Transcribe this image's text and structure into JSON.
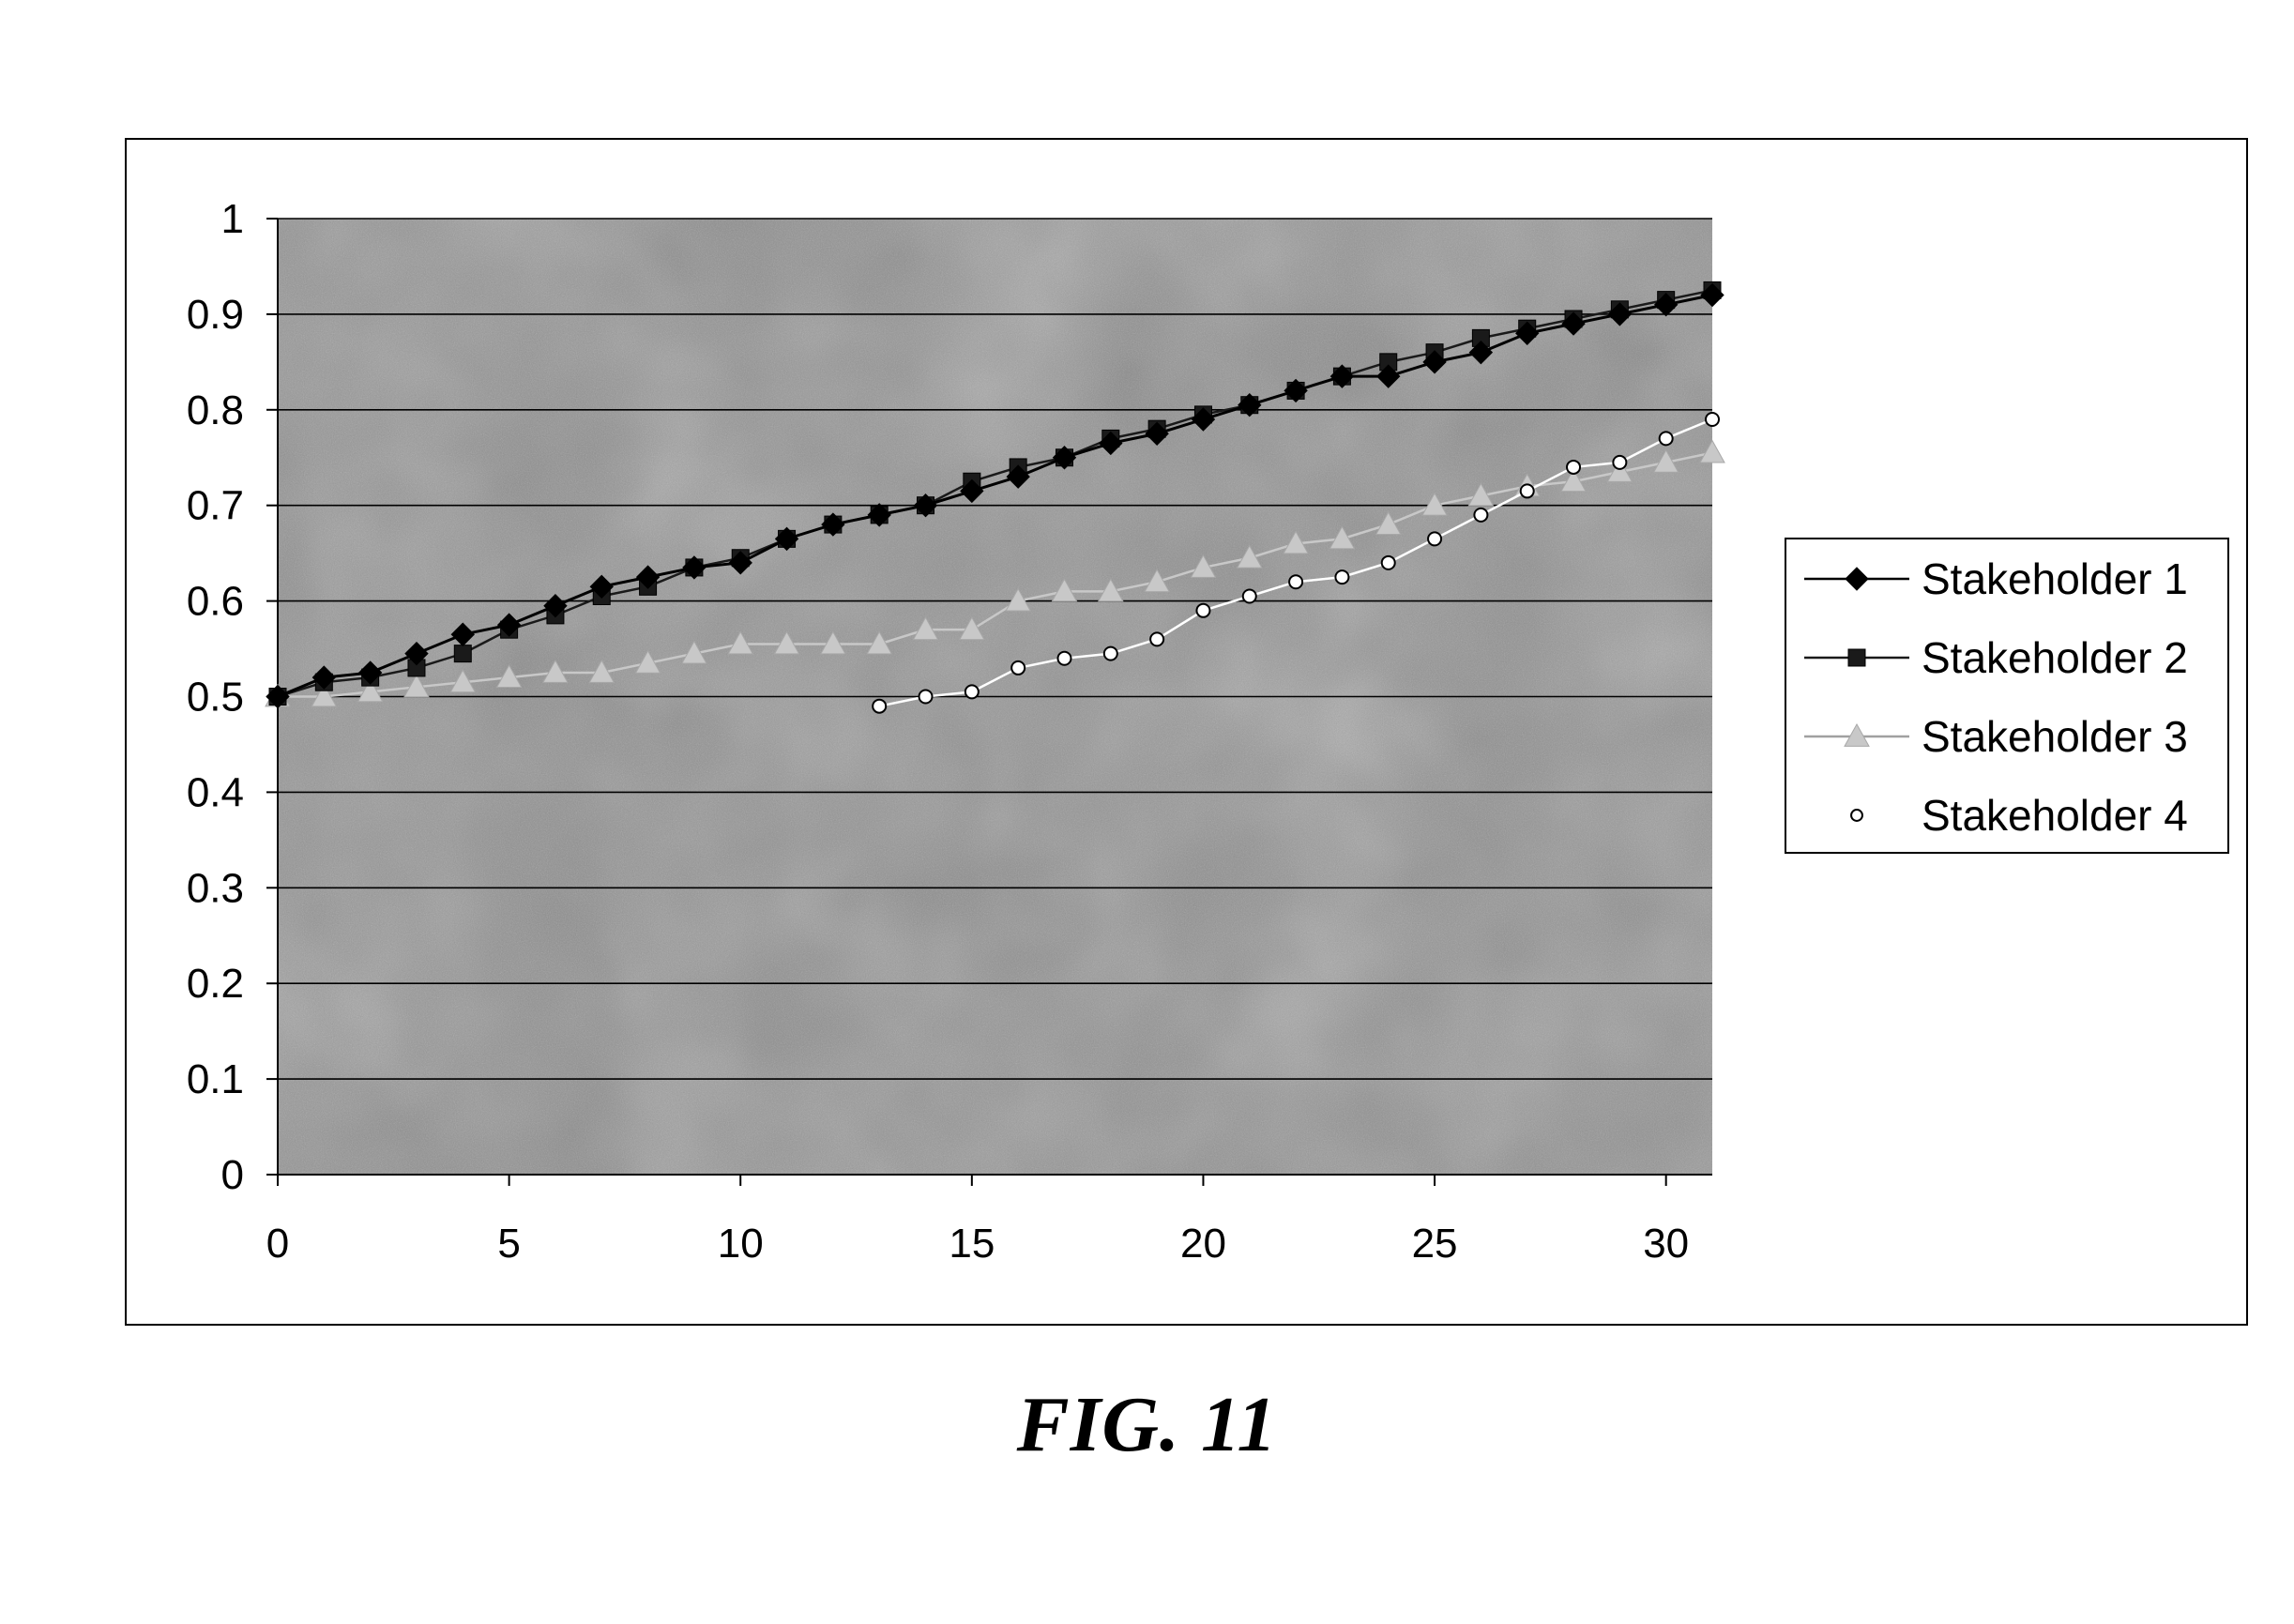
{
  "figure": {
    "caption": "FIG. 11"
  },
  "chart_data": {
    "type": "line",
    "title": "",
    "xlabel": "",
    "ylabel": "",
    "xlim": [
      0,
      31
    ],
    "ylim": [
      0,
      1
    ],
    "x_ticks": [
      0,
      5,
      10,
      15,
      20,
      25,
      30
    ],
    "x_tick_labels": [
      "0",
      "5",
      "10",
      "15",
      "20",
      "25",
      "30"
    ],
    "y_ticks": [
      0,
      0.1,
      0.2,
      0.3,
      0.4,
      0.5,
      0.6,
      0.7,
      0.8,
      0.9,
      1
    ],
    "y_tick_labels": [
      "0",
      "0.1",
      "0.2",
      "0.3",
      "0.4",
      "0.5",
      "0.6",
      "0.7",
      "0.8",
      "0.9",
      "1"
    ],
    "grid": {
      "horizontal": true,
      "vertical": false
    },
    "legend_position": "right",
    "plot_background": "#8f8f8f",
    "series": [
      {
        "name": "Stakeholder 1",
        "marker": "diamond",
        "color": "#000000",
        "x": [
          0,
          1,
          2,
          3,
          4,
          5,
          6,
          7,
          8,
          9,
          10,
          11,
          12,
          13,
          14,
          15,
          16,
          17,
          18,
          19,
          20,
          21,
          22,
          23,
          24,
          25,
          26,
          27,
          28,
          29,
          30,
          31
        ],
        "y": [
          0.5,
          0.52,
          0.525,
          0.545,
          0.565,
          0.575,
          0.595,
          0.615,
          0.625,
          0.635,
          0.64,
          0.665,
          0.68,
          0.69,
          0.7,
          0.715,
          0.73,
          0.75,
          0.765,
          0.775,
          0.79,
          0.805,
          0.82,
          0.835,
          0.835,
          0.85,
          0.86,
          0.88,
          0.89,
          0.9,
          0.91,
          0.92
        ]
      },
      {
        "name": "Stakeholder 2",
        "marker": "square",
        "color": "#1a1a1a",
        "x": [
          0,
          1,
          2,
          3,
          4,
          5,
          6,
          7,
          8,
          9,
          10,
          11,
          12,
          13,
          14,
          15,
          16,
          17,
          18,
          19,
          20,
          21,
          22,
          23,
          24,
          25,
          26,
          27,
          28,
          29,
          30,
          31
        ],
        "y": [
          0.5,
          0.515,
          0.52,
          0.53,
          0.545,
          0.57,
          0.585,
          0.605,
          0.615,
          0.635,
          0.645,
          0.665,
          0.68,
          0.69,
          0.7,
          0.725,
          0.74,
          0.75,
          0.77,
          0.78,
          0.795,
          0.805,
          0.82,
          0.835,
          0.85,
          0.86,
          0.875,
          0.885,
          0.895,
          0.905,
          0.915,
          0.925
        ]
      },
      {
        "name": "Stakeholder 3",
        "marker": "triangle",
        "color": "#c8c8c8",
        "x": [
          0,
          1,
          2,
          3,
          4,
          5,
          6,
          7,
          8,
          9,
          10,
          11,
          12,
          13,
          14,
          15,
          16,
          17,
          18,
          19,
          20,
          21,
          22,
          23,
          24,
          25,
          26,
          27,
          28,
          29,
          30,
          31
        ],
        "y": [
          0.5,
          0.5,
          0.505,
          0.51,
          0.515,
          0.52,
          0.525,
          0.525,
          0.535,
          0.545,
          0.555,
          0.555,
          0.555,
          0.555,
          0.57,
          0.57,
          0.6,
          0.61,
          0.61,
          0.62,
          0.635,
          0.645,
          0.66,
          0.665,
          0.68,
          0.7,
          0.71,
          0.72,
          0.725,
          0.735,
          0.745,
          0.755
        ]
      },
      {
        "name": "Stakeholder 4",
        "marker": "circle",
        "color": "#ffffff",
        "x": [
          13,
          14,
          15,
          16,
          17,
          18,
          19,
          20,
          21,
          22,
          23,
          24,
          25,
          26,
          27,
          28,
          29,
          30,
          31
        ],
        "y": [
          0.49,
          0.5,
          0.505,
          0.53,
          0.54,
          0.545,
          0.56,
          0.59,
          0.605,
          0.62,
          0.625,
          0.64,
          0.665,
          0.69,
          0.715,
          0.74,
          0.745,
          0.77,
          0.79
        ]
      }
    ]
  }
}
